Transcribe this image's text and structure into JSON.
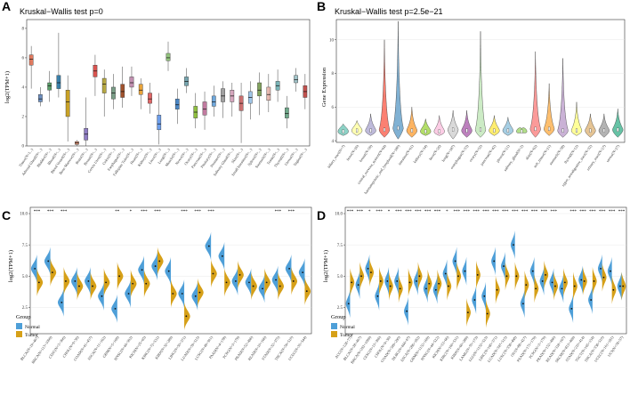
{
  "panels": {
    "A": {
      "letter": "A",
      "title": "Kruskal−Wallis test p=0",
      "ylabel": "log2(TPM+1)",
      "yticks": [
        "0",
        "2",
        "4",
        "6",
        "8"
      ]
    },
    "B": {
      "letter": "B",
      "title": "Kruskal−Wallis test p=2.5e−21",
      "ylabel": "Gene Expression",
      "yticks": [
        "4",
        "6",
        "8",
        "10"
      ]
    },
    "C": {
      "letter": "C",
      "ylabel": "log2(TPM+1)",
      "yticks": [
        "2.5",
        "5.0",
        "7.5",
        "10.0"
      ],
      "legend_title": "Group",
      "legend_items": [
        "Normal",
        "Tumor"
      ]
    },
    "D": {
      "letter": "D",
      "ylabel": "log2(TPM+1)",
      "yticks": [
        "2.5",
        "5.0",
        "7.5",
        "10.0"
      ],
      "legend_title": "Group",
      "legend_items": [
        "Normal",
        "Tumor"
      ]
    }
  },
  "colors": {
    "normal": "#4e9fd8",
    "tumor": "#d6a018"
  },
  "chart_data": [
    {
      "id": "A",
      "type": "box",
      "title": "Kruskal−Wallis test p=0",
      "ylabel": "log2(TPM+1)",
      "ylim": [
        0,
        8.6
      ],
      "categories": [
        "Tissue(N=1...)",
        "Adrenal Gland(N=...)",
        "Bladder(N=...)",
        "Blood(N=...)",
        "Blood Vessel(N=...)",
        "Bone Marrow(N=...)",
        "Brain(N=...)",
        "Breast(N=...)",
        "Cervix Uteri(N=...)",
        "Colon(N=...)",
        "Esophagus(N=...)",
        "Fallopian Tube(N=...)",
        "Heart(N=...)",
        "Kidney(N=...)",
        "Liver(N=...)",
        "Lung(N=...)",
        "Muscle(N=...)",
        "Nerve(N=...)",
        "Ovary(N=...)",
        "Pancreas(N=...)",
        "Pituitary(N=...)",
        "Prostate(N=...)",
        "Salivary Gland(N=...)",
        "Skin(N=...)",
        "Small Intestine(N=...)",
        "Spleen(N=...)",
        "Stomach(N=...)",
        "Testis(N=...)",
        "Thyroid(N=...)",
        "Uterus(N=...)",
        "Vagina(N=...)"
      ],
      "medians": [
        5.9,
        3.2,
        4.1,
        4.3,
        3.0,
        0.2,
        0.8,
        5.1,
        4.2,
        3.6,
        3.7,
        4.3,
        3.8,
        3.2,
        1.5,
        6.0,
        2.8,
        4.4,
        2.3,
        2.5,
        3.0,
        3.4,
        3.4,
        2.9,
        3.3,
        3.8,
        3.5,
        4.1,
        2.2,
        4.5,
        3.7
      ],
      "q1": [
        5.5,
        3.0,
        3.8,
        3.9,
        2.0,
        0.1,
        0.4,
        4.7,
        3.6,
        3.2,
        3.3,
        4.0,
        3.5,
        2.9,
        1.1,
        5.8,
        2.5,
        4.1,
        1.9,
        2.1,
        2.7,
        3.0,
        3.0,
        2.4,
        2.9,
        3.4,
        3.1,
        3.8,
        1.9,
        4.3,
        3.3
      ],
      "q3": [
        6.2,
        3.5,
        4.3,
        4.8,
        3.8,
        0.3,
        1.2,
        5.5,
        4.6,
        4.0,
        4.2,
        4.7,
        4.2,
        3.6,
        2.1,
        6.3,
        3.2,
        4.7,
        2.7,
        3.0,
        3.4,
        3.9,
        3.8,
        3.4,
        3.7,
        4.3,
        4.0,
        4.4,
        2.6,
        4.8,
        4.1
      ],
      "whisker_low": [
        3.9,
        2.7,
        3.0,
        3.3,
        0.3,
        0.0,
        0.0,
        3.4,
        2.0,
        2.5,
        2.6,
        3.4,
        2.5,
        2.2,
        0.1,
        5.1,
        1.5,
        3.6,
        1.2,
        1.1,
        2.0,
        1.9,
        2.0,
        0.2,
        1.8,
        2.1,
        2.3,
        3.0,
        1.2,
        3.7,
        2.5
      ],
      "whisker_high": [
        6.8,
        4.0,
        5.1,
        7.7,
        4.8,
        0.4,
        3.3,
        6.2,
        5.2,
        4.9,
        5.4,
        5.4,
        4.6,
        4.3,
        3.6,
        7.1,
        3.9,
        5.3,
        3.6,
        3.7,
        4.1,
        4.4,
        4.3,
        4.3,
        4.4,
        5.0,
        4.9,
        5.2,
        3.4,
        5.3,
        4.9
      ],
      "colors": [
        "#e07a5f",
        "#6c8ebf",
        "#5b9e6a",
        "#3a7fa8",
        "#c9a227",
        "#d98c6f",
        "#8e7cc3",
        "#d9534f",
        "#b5a642",
        "#7a9e87",
        "#a0522d",
        "#c18fb0",
        "#e8a33a",
        "#e06666",
        "#6d9eeb",
        "#93c47d",
        "#4a86c5",
        "#76a5af",
        "#8fbf3f",
        "#c27ba0",
        "#6fa8dc",
        "#a0a0a0",
        "#d5a6bd",
        "#ca6f6f",
        "#9fc5e8",
        "#82a35e",
        "#e6b8af",
        "#79b4b7",
        "#6fa88a",
        "#a2c4c9",
        "#c0504d"
      ]
    },
    {
      "id": "B",
      "type": "violin",
      "title": "Kruskal−Wallis test p=2.5e−21",
      "ylabel": "Gene Expression",
      "ylim": [
        3.9,
        11.2
      ],
      "categories": [
        "biliary_tract(N=7)",
        "bone(N=26)",
        "breast(N=59)",
        "central_nervous_system(N=64)",
        "haematopoietic_and_lymphoid(N=180)",
        "intestine(N=61)",
        "kidney(N=34)",
        "liver(N=26)",
        "lung(N=187)",
        "oesophagus(N=33)",
        "ovary(N=52)",
        "pancreas(N=42)",
        "pleura(N=21)",
        "salivary_gland(N=2)",
        "skin(N=62)",
        "soft_tissue(N=21)",
        "stomach(N=38)",
        "thyroid(N=12)",
        "upper_aerodigestive_tract(N=32)",
        "urinary_tract(N=27)",
        "uterus(N=27)"
      ],
      "medians": [
        4.55,
        4.6,
        4.6,
        4.65,
        4.75,
        4.6,
        4.55,
        4.55,
        4.65,
        4.6,
        4.65,
        4.6,
        4.6,
        4.55,
        4.7,
        4.7,
        4.6,
        4.6,
        4.6,
        4.6,
        4.65
      ],
      "max": [
        5.0,
        5.2,
        5.6,
        10.0,
        11.1,
        6.0,
        5.3,
        5.5,
        5.8,
        5.8,
        10.5,
        5.5,
        5.4,
        4.7,
        9.3,
        7.4,
        8.9,
        6.3,
        5.6,
        5.6,
        5.9
      ],
      "min": [
        4.3,
        4.3,
        4.3,
        4.2,
        4.1,
        4.2,
        4.3,
        4.3,
        4.1,
        4.2,
        4.2,
        4.3,
        4.3,
        4.45,
        4.2,
        4.3,
        4.2,
        4.3,
        4.2,
        4.2,
        4.2
      ],
      "colors": [
        "#8dd3c7",
        "#ffffb3",
        "#bebada",
        "#fb8072",
        "#80b1d3",
        "#fdb462",
        "#b3de69",
        "#fccde5",
        "#d9d9d9",
        "#bc80bd",
        "#ccebc5",
        "#ffed6f",
        "#a6cee3",
        "#b2df8a",
        "#fb9a99",
        "#fdbf6f",
        "#cab2d6",
        "#ffff99",
        "#e5c494",
        "#b3b3b3",
        "#66c2a5"
      ]
    },
    {
      "id": "C",
      "type": "split-violin",
      "ylabel": "log2(TPM+1)",
      "ylim": [
        0.4,
        10.5
      ],
      "categories": [
        "BLCA(N=19+407)",
        "BRCA(N=113+1099)",
        "CESC(N=3+306)",
        "CHOL(N=9+36)",
        "COAD(N=41+457)",
        "ESCA(N=11+162)",
        "GBM(N=5+169)",
        "HNSC(N=44+502)",
        "KICH(N=25+65)",
        "KIRC(N=72+531)",
        "KIRP(N=32+289)",
        "LIHC(N=50+371)",
        "LUAD(N=59+515)",
        "LUSC(N=49+501)",
        "PAAD(N=4+178)",
        "PCPG(N=3+179)",
        "PRAD(N=52+496)",
        "READ(N=10+166)",
        "STAD(N=32+375)",
        "THCA(N=59+510)",
        "UCEC(N=35+544)"
      ],
      "significance": [
        "***",
        "***",
        "***",
        "",
        "",
        "",
        "**",
        "*",
        "***",
        "***",
        "",
        "***",
        "***",
        "***",
        "",
        "",
        "",
        "",
        "***",
        "***",
        ""
      ],
      "normal_median": [
        5.6,
        6.2,
        2.9,
        4.6,
        4.6,
        3.4,
        2.4,
        3.6,
        5.5,
        5.8,
        5.4,
        3.6,
        3.4,
        7.4,
        6.6,
        4.6,
        4.5,
        4.0,
        4.7,
        5.6,
        5.3
      ],
      "tumor_median": [
        4.5,
        5.3,
        4.6,
        4.2,
        4.2,
        4.5,
        5.0,
        4.4,
        4.4,
        6.2,
        3.6,
        1.8,
        3.7,
        5.2,
        4.5,
        5.1,
        4.2,
        4.5,
        4.2,
        4.6,
        3.8
      ]
    },
    {
      "id": "D",
      "type": "split-violin",
      "ylabel": "log2(TPM+1)",
      "ylim": [
        0.4,
        10.5
      ],
      "categories": [
        "ACC(N=128+77)",
        "BLCA(N=28+407)",
        "BRCA(N=292+1099)",
        "CESC(N=13+306)",
        "CHOL(N=9+36)",
        "COAD(N=349+290)",
        "DLBC(N=444+47)",
        "ESCA(N=286+182)",
        "GBM(N=1152+169)",
        "HNSC(N=44+522)",
        "KICH(N=53+66)",
        "KIRC(N=100+531)",
        "KIRP(N=60+289)",
        "LAML(N=70+173)",
        "LGG(N=1152+523)",
        "LIHC(N=160+371)",
        "LUAD(N=347+515)",
        "LUSC(N=338+498)",
        "OV(N=88+427)",
        "PAAD(N=171+179)",
        "PCPG(N=3+179)",
        "PRAD(N=152+496)",
        "READ(N=318+167)",
        "SKCM(N=813+469)",
        "STAD(N=210+414)",
        "TGCT(N=165+154)",
        "THCA(N=338+510)",
        "UCEC(N=101+181)",
        "UCS(N=78+57)"
      ],
      "significance": [
        "***",
        "***",
        "*",
        "***",
        "*",
        "***",
        "***",
        "***",
        "***",
        "***",
        "*",
        "***",
        "***",
        "***",
        "***",
        "***",
        "***",
        "***",
        "***",
        "***",
        "***",
        "***",
        "",
        "***",
        "***",
        "***",
        "***",
        "***",
        "***"
      ],
      "normal_median": [
        2.8,
        4.3,
        5.6,
        3.4,
        4.6,
        4.6,
        2.2,
        4.6,
        4.0,
        3.9,
        5.2,
        6.2,
        5.4,
        3.1,
        3.4,
        6.2,
        5.8,
        7.5,
        2.8,
        5.4,
        4.6,
        4.5,
        4.0,
        2.4,
        4.7,
        3.1,
        5.6,
        5.4,
        4.2
      ],
      "tumor_median": [
        4.5,
        5.0,
        5.3,
        4.6,
        4.2,
        4.0,
        4.5,
        5.0,
        4.4,
        4.4,
        4.2,
        5.0,
        2.1,
        5.1,
        2.0,
        3.9,
        5.0,
        5.0,
        4.3,
        4.0,
        5.1,
        4.2,
        4.5,
        4.2,
        4.6,
        4.6,
        4.9,
        3.9,
        4.2
      ]
    }
  ]
}
